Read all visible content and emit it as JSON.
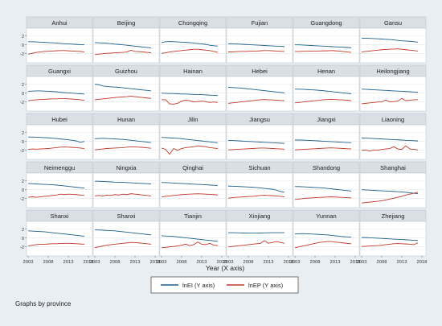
{
  "chart_data": {
    "type": "line",
    "layout": "small-multiples",
    "xlabel": "Year (X axis)",
    "x_ticks": [
      2003,
      2008,
      2013,
      2018
    ],
    "y_ticks": [
      2,
      0,
      -2
    ],
    "ylim": [
      -3.5,
      3.2
    ],
    "xlim": [
      2003,
      2018
    ],
    "grid": true,
    "legend_position": "bottom",
    "note": "Graphs by province",
    "series_legend": [
      {
        "key": "lnEI",
        "name": "lnEI (Y axis)",
        "color": "#1f5f8b"
      },
      {
        "key": "lnEP",
        "name": "lnEP (Y axis)",
        "color": "#c0392b"
      }
    ],
    "years": [
      2003,
      2004,
      2005,
      2006,
      2007,
      2008,
      2009,
      2010,
      2011,
      2012,
      2013,
      2014,
      2015,
      2016,
      2017
    ],
    "panels": [
      {
        "name": "Anhui",
        "lnEI": [
          0.7,
          0.68,
          0.65,
          0.6,
          0.55,
          0.5,
          0.45,
          0.4,
          0.32,
          0.25,
          0.2,
          0.15,
          0.1,
          0.05,
          0.0
        ],
        "lnEP": [
          -2.1,
          -1.9,
          -1.7,
          -1.6,
          -1.5,
          -1.45,
          -1.4,
          -1.35,
          -1.3,
          -1.3,
          -1.35,
          -1.4,
          -1.45,
          -1.5,
          -1.6
        ]
      },
      {
        "name": "Beijing",
        "lnEI": [
          0.5,
          0.45,
          0.4,
          0.35,
          0.25,
          0.15,
          0.1,
          0.0,
          -0.1,
          -0.2,
          -0.3,
          -0.4,
          -0.5,
          -0.6,
          -0.7
        ],
        "lnEP": [
          -2.2,
          -2.1,
          -2.0,
          -1.9,
          -1.85,
          -1.8,
          -1.75,
          -1.7,
          -1.6,
          -1.2,
          -1.5,
          -1.55,
          -1.6,
          -1.7,
          -1.8
        ]
      },
      {
        "name": "Chongqing",
        "lnEI": [
          0.5,
          0.7,
          0.75,
          0.7,
          0.65,
          0.6,
          0.55,
          0.5,
          0.4,
          0.3,
          0.2,
          0.1,
          -0.1,
          -0.2,
          -0.3
        ],
        "lnEP": [
          -1.9,
          -1.8,
          -1.6,
          -1.5,
          -1.4,
          -1.3,
          -1.2,
          -1.1,
          -1.0,
          -1.0,
          -1.1,
          -1.2,
          -1.3,
          -1.5,
          -1.7
        ]
      },
      {
        "name": "Fujian",
        "lnEI": [
          0.2,
          0.2,
          0.18,
          0.15,
          0.1,
          0.05,
          0.0,
          -0.05,
          -0.1,
          -0.15,
          -0.2,
          -0.25,
          -0.3,
          -0.35,
          -0.4
        ],
        "lnEP": [
          -1.6,
          -1.6,
          -1.55,
          -1.5,
          -1.5,
          -1.45,
          -1.4,
          -1.4,
          -1.35,
          -1.3,
          -1.3,
          -1.35,
          -1.4,
          -1.45,
          -1.5
        ]
      },
      {
        "name": "Guangdong",
        "lnEI": [
          0.0,
          0.0,
          -0.05,
          -0.1,
          -0.15,
          -0.2,
          -0.25,
          -0.3,
          -0.35,
          -0.4,
          -0.45,
          -0.5,
          -0.55,
          -0.6,
          -0.65
        ],
        "lnEP": [
          -1.5,
          -1.5,
          -1.45,
          -1.45,
          -1.4,
          -1.4,
          -1.4,
          -1.35,
          -1.35,
          -1.3,
          -1.35,
          -1.4,
          -1.5,
          -1.6,
          -1.7
        ]
      },
      {
        "name": "Gansu",
        "lnEI": [
          1.5,
          1.5,
          1.45,
          1.4,
          1.35,
          1.3,
          1.25,
          1.2,
          1.1,
          1.0,
          0.9,
          0.85,
          0.8,
          0.7,
          0.6
        ],
        "lnEP": [
          -1.6,
          -1.5,
          -1.4,
          -1.3,
          -1.2,
          -1.1,
          -1.05,
          -1.0,
          -0.95,
          -0.9,
          -1.0,
          -1.1,
          -1.2,
          -1.3,
          -1.4
        ]
      },
      {
        "name": "Guangxi",
        "lnEI": [
          0.4,
          0.45,
          0.5,
          0.5,
          0.45,
          0.4,
          0.35,
          0.3,
          0.2,
          0.1,
          0.05,
          0.0,
          -0.1,
          -0.15,
          -0.2
        ],
        "lnEP": [
          -1.7,
          -1.6,
          -1.5,
          -1.45,
          -1.4,
          -1.35,
          -1.3,
          -1.3,
          -1.25,
          -1.25,
          -1.3,
          -1.35,
          -1.4,
          -1.5,
          -1.6
        ]
      },
      {
        "name": "Guizhou",
        "lnEI": [
          2.0,
          1.9,
          1.6,
          1.5,
          1.4,
          1.35,
          1.3,
          1.2,
          1.1,
          1.0,
          0.9,
          0.8,
          0.7,
          0.6,
          0.5
        ],
        "lnEP": [
          -1.5,
          -1.4,
          -1.3,
          -1.2,
          -1.1,
          -1.0,
          -0.9,
          -0.85,
          -0.8,
          -0.7,
          -0.8,
          -0.9,
          -1.0,
          -1.1,
          -1.2
        ]
      },
      {
        "name": "Hainan",
        "lnEI": [
          0.0,
          -0.05,
          -0.1,
          -0.1,
          -0.15,
          -0.2,
          -0.2,
          -0.25,
          -0.3,
          -0.35,
          -0.35,
          -0.4,
          -0.45,
          -0.5,
          -0.55
        ],
        "lnEP": [
          -1.5,
          -1.5,
          -2.4,
          -2.5,
          -2.3,
          -1.8,
          -1.6,
          -1.7,
          -2.0,
          -1.9,
          -1.8,
          -1.9,
          -2.1,
          -2.0,
          -2.1
        ]
      },
      {
        "name": "Hebei",
        "lnEI": [
          1.3,
          1.25,
          1.2,
          1.15,
          1.05,
          0.95,
          0.85,
          0.75,
          0.65,
          0.55,
          0.45,
          0.35,
          0.25,
          0.15,
          0.05
        ],
        "lnEP": [
          -2.3,
          -2.2,
          -2.1,
          -2.0,
          -1.9,
          -1.8,
          -1.7,
          -1.6,
          -1.5,
          -1.45,
          -1.5,
          -1.55,
          -1.6,
          -1.65,
          -1.7
        ]
      },
      {
        "name": "Henan",
        "lnEI": [
          0.9,
          0.88,
          0.85,
          0.8,
          0.75,
          0.7,
          0.62,
          0.55,
          0.45,
          0.35,
          0.25,
          0.15,
          0.05,
          -0.05,
          -0.15
        ],
        "lnEP": [
          -2.2,
          -2.1,
          -2.0,
          -1.9,
          -1.8,
          -1.7,
          -1.6,
          -1.5,
          -1.45,
          -1.4,
          -1.45,
          -1.5,
          -1.55,
          -1.6,
          -1.7
        ]
      },
      {
        "name": "Heilongjiang",
        "lnEI": [
          0.9,
          0.85,
          0.8,
          0.75,
          0.7,
          0.65,
          0.6,
          0.55,
          0.5,
          0.45,
          0.4,
          0.35,
          0.3,
          0.25,
          0.2
        ],
        "lnEP": [
          -2.4,
          -2.3,
          -2.2,
          -2.1,
          -2.0,
          -2.0,
          -1.5,
          -2.0,
          -1.9,
          -1.8,
          -1.2,
          -1.7,
          -1.6,
          -1.5,
          -1.5
        ]
      },
      {
        "name": "Hubei",
        "lnEI": [
          1.0,
          1.0,
          0.95,
          0.9,
          0.85,
          0.8,
          0.72,
          0.65,
          0.55,
          0.45,
          0.35,
          0.25,
          0.1,
          -0.2,
          0.0
        ],
        "lnEP": [
          -1.8,
          -1.7,
          -1.75,
          -1.7,
          -1.65,
          -1.6,
          -1.5,
          -1.4,
          -1.3,
          -1.25,
          -1.3,
          -1.35,
          -1.4,
          -1.5,
          -1.6
        ]
      },
      {
        "name": "Hunan",
        "lnEI": [
          0.6,
          0.65,
          0.7,
          0.65,
          0.6,
          0.55,
          0.5,
          0.45,
          0.35,
          0.25,
          0.15,
          0.05,
          -0.05,
          -0.15,
          -0.25
        ],
        "lnEP": [
          -1.9,
          -1.8,
          -1.7,
          -1.6,
          -1.55,
          -1.5,
          -1.45,
          -1.4,
          -1.3,
          -1.2,
          -1.25,
          -1.3,
          -1.35,
          -1.45,
          -1.55
        ]
      },
      {
        "name": "Jilin",
        "lnEI": [
          0.9,
          0.85,
          0.8,
          0.75,
          0.7,
          0.6,
          0.5,
          0.4,
          0.3,
          0.2,
          0.1,
          0.0,
          -0.1,
          -0.2,
          -0.3
        ],
        "lnEP": [
          -1.5,
          -1.8,
          -2.9,
          -1.6,
          -2.0,
          -1.6,
          -1.4,
          -1.3,
          -1.2,
          -1.0,
          -1.1,
          -1.2,
          -1.4,
          -1.5,
          -1.6
        ]
      },
      {
        "name": "Jiangsu",
        "lnEI": [
          0.2,
          0.2,
          0.15,
          0.1,
          0.05,
          0.0,
          -0.05,
          -0.1,
          -0.15,
          -0.2,
          -0.25,
          -0.3,
          -0.35,
          -0.4,
          -0.45
        ],
        "lnEP": [
          -1.9,
          -1.85,
          -1.8,
          -1.75,
          -1.7,
          -1.65,
          -1.6,
          -1.55,
          -1.5,
          -1.5,
          -1.55,
          -1.6,
          -1.65,
          -1.7,
          -1.75
        ]
      },
      {
        "name": "Jiangxi",
        "lnEI": [
          0.3,
          0.3,
          0.28,
          0.25,
          0.2,
          0.15,
          0.1,
          0.05,
          0.0,
          -0.05,
          -0.1,
          -0.15,
          -0.2,
          -0.25,
          -0.3
        ],
        "lnEP": [
          -1.9,
          -1.85,
          -1.8,
          -1.75,
          -1.7,
          -1.65,
          -1.6,
          -1.55,
          -1.5,
          -1.45,
          -1.5,
          -1.55,
          -1.6,
          -1.65,
          -1.7
        ]
      },
      {
        "name": "Liaoning",
        "lnEI": [
          0.8,
          0.75,
          0.7,
          0.65,
          0.6,
          0.55,
          0.5,
          0.45,
          0.4,
          0.35,
          0.3,
          0.25,
          0.2,
          0.15,
          0.1
        ],
        "lnEP": [
          -2.0,
          -1.9,
          -2.2,
          -1.9,
          -2.0,
          -1.8,
          -1.7,
          -1.6,
          -1.2,
          -1.7,
          -1.8,
          -1.0,
          -1.7,
          -1.8,
          -1.9
        ]
      },
      {
        "name": "Neimenggu",
        "lnEI": [
          1.4,
          1.35,
          1.3,
          1.25,
          1.2,
          1.15,
          1.1,
          1.05,
          0.95,
          0.85,
          0.75,
          0.65,
          0.55,
          0.45,
          0.35
        ],
        "lnEP": [
          -1.7,
          -1.6,
          -1.7,
          -1.6,
          -1.5,
          -1.4,
          -1.3,
          -1.2,
          -1.0,
          -1.1,
          -1.0,
          -1.05,
          -1.1,
          -1.2,
          -1.3
        ]
      },
      {
        "name": "Ningxia",
        "lnEI": [
          1.9,
          1.9,
          1.85,
          1.8,
          1.75,
          1.7,
          1.68,
          1.65,
          1.6,
          1.55,
          1.5,
          1.45,
          1.4,
          1.35,
          1.3
        ],
        "lnEP": [
          -1.4,
          -1.3,
          -1.4,
          -1.2,
          -1.3,
          -1.1,
          -1.2,
          -1.0,
          -1.1,
          -0.9,
          -1.0,
          -1.1,
          -1.2,
          -1.3,
          -1.4
        ]
      },
      {
        "name": "Qinghai",
        "lnEI": [
          1.6,
          1.6,
          1.55,
          1.5,
          1.45,
          1.4,
          1.35,
          1.3,
          1.25,
          1.2,
          1.15,
          1.1,
          1.05,
          1.0,
          0.95
        ],
        "lnEP": [
          -1.6,
          -1.5,
          -1.4,
          -1.3,
          -1.2,
          -1.1,
          -1.05,
          -1.0,
          -0.95,
          -0.9,
          -0.95,
          -1.0,
          -1.05,
          -1.1,
          -1.2
        ]
      },
      {
        "name": "Sichuan",
        "lnEI": [
          0.8,
          0.78,
          0.75,
          0.7,
          0.65,
          0.6,
          0.55,
          0.5,
          0.4,
          0.3,
          0.2,
          0.1,
          -0.1,
          -0.4,
          -0.6
        ],
        "lnEP": [
          -1.9,
          -1.8,
          -1.7,
          -1.65,
          -1.6,
          -1.55,
          -1.5,
          -1.4,
          -1.3,
          -1.25,
          -1.3,
          -1.35,
          -1.4,
          -1.5,
          -1.6
        ]
      },
      {
        "name": "Shandong",
        "lnEI": [
          0.7,
          0.7,
          0.65,
          0.6,
          0.55,
          0.5,
          0.45,
          0.4,
          0.3,
          0.2,
          0.1,
          0.0,
          -0.1,
          -0.2,
          -0.3
        ],
        "lnEP": [
          -2.2,
          -2.1,
          -2.0,
          -1.9,
          -1.85,
          -1.8,
          -1.75,
          -1.7,
          -1.65,
          -1.6,
          -1.65,
          -1.7,
          -1.75,
          -1.8,
          -1.85
        ]
      },
      {
        "name": "Shanghai",
        "lnEI": [
          0.0,
          -0.05,
          -0.1,
          -0.15,
          -0.2,
          -0.25,
          -0.3,
          -0.35,
          -0.4,
          -0.45,
          -0.5,
          -0.6,
          -0.7,
          -0.8,
          -0.9
        ],
        "lnEP": [
          -3.0,
          -2.9,
          -2.8,
          -2.7,
          -2.6,
          -2.5,
          -2.3,
          -2.1,
          -1.9,
          -1.7,
          -1.5,
          -1.2,
          -1.0,
          -0.8,
          -0.6
        ]
      },
      {
        "name": "Shanxi",
        "lnEI": [
          1.6,
          1.55,
          1.5,
          1.45,
          1.4,
          1.3,
          1.2,
          1.1,
          1.0,
          0.9,
          0.8,
          0.7,
          0.6,
          0.5,
          0.4
        ],
        "lnEP": [
          -1.8,
          -1.6,
          -1.5,
          -1.4,
          -1.4,
          -1.35,
          -1.3,
          -1.3,
          -1.25,
          -1.2,
          -1.2,
          -1.25,
          -1.3,
          -1.35,
          -1.4
        ]
      },
      {
        "name": "Shanxi",
        "lnEI": [
          1.8,
          1.8,
          1.75,
          1.7,
          1.65,
          1.6,
          1.5,
          1.4,
          1.3,
          1.2,
          1.1,
          1.0,
          0.9,
          0.8,
          0.7
        ],
        "lnEP": [
          -2.2,
          -2.0,
          -1.8,
          -1.6,
          -1.5,
          -1.4,
          -1.3,
          -1.2,
          -1.1,
          -1.0,
          -1.05,
          -1.1,
          -1.2,
          -1.3,
          -1.4
        ]
      },
      {
        "name": "Tianjin",
        "lnEI": [
          0.5,
          0.45,
          0.4,
          0.35,
          0.25,
          0.15,
          0.05,
          -0.05,
          -0.15,
          -0.25,
          -0.35,
          -0.45,
          -0.55,
          -0.65,
          -0.75
        ],
        "lnEP": [
          -2.2,
          -2.1,
          -2.0,
          -1.9,
          -1.8,
          -1.6,
          -1.4,
          -1.7,
          -1.5,
          -0.9,
          -1.4,
          -1.5,
          -1.2,
          -1.6,
          -1.7
        ]
      },
      {
        "name": "Xinjiang",
        "lnEI": [
          1.2,
          1.2,
          1.18,
          1.15,
          1.12,
          1.1,
          1.1,
          1.1,
          1.12,
          1.15,
          1.18,
          1.2,
          1.2,
          1.2,
          1.2
        ],
        "lnEP": [
          -2.0,
          -1.9,
          -1.8,
          -1.7,
          -1.6,
          -1.5,
          -1.4,
          -1.3,
          -1.2,
          -0.6,
          -1.2,
          -1.0,
          -0.8,
          -1.0,
          -1.2
        ]
      },
      {
        "name": "Yunnan",
        "lnEI": [
          0.9,
          0.95,
          1.0,
          0.95,
          0.9,
          0.85,
          0.8,
          0.75,
          0.7,
          0.6,
          0.5,
          0.4,
          0.3,
          0.25,
          0.2
        ],
        "lnEP": [
          -2.2,
          -2.0,
          -1.8,
          -1.6,
          -1.4,
          -1.2,
          -1.0,
          -0.9,
          -0.8,
          -0.8,
          -0.9,
          -1.0,
          -1.1,
          -1.2,
          -1.3
        ]
      },
      {
        "name": "Zhejiang",
        "lnEI": [
          0.1,
          0.1,
          0.05,
          0.0,
          -0.05,
          -0.1,
          -0.15,
          -0.2,
          -0.25,
          -0.3,
          -0.35,
          -0.4,
          -0.45,
          -0.5,
          -0.55
        ],
        "lnEP": [
          -1.9,
          -1.85,
          -1.8,
          -1.75,
          -1.7,
          -1.6,
          -1.5,
          -1.4,
          -1.3,
          -1.25,
          -1.3,
          -1.35,
          -1.4,
          -1.5,
          -1.1
        ]
      }
    ]
  }
}
